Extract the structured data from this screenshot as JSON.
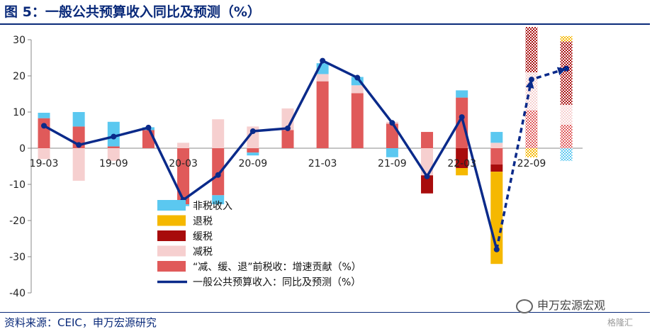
{
  "title": "图 5：一般公共预算收入同比及预测（%）",
  "source": "资料来源：CEIC，申万宏源研究",
  "watermark": "申万宏源宏观",
  "watermark_sub": "格隆汇",
  "colors": {
    "nontax": "#5bc8f0",
    "refund": "#f5b800",
    "defer": "#a80c0c",
    "cut": "#f6cfcf",
    "pretax": "#e05a5a",
    "line": "#0a2a8a",
    "title": "#0a2a7a"
  },
  "chart_data": {
    "type": "bar",
    "stacked": true,
    "ylim": [
      -40,
      30
    ],
    "yticks": [
      -40,
      -30,
      -20,
      -10,
      0,
      10,
      20,
      30
    ],
    "x_tick_labels": [
      "19-03",
      "19-09",
      "20-03",
      "20-09",
      "21-03",
      "21-09",
      "22-03",
      "22-09"
    ],
    "x_tick_index": [
      0,
      3,
      6,
      9,
      12,
      15,
      18,
      21
    ],
    "categories": [
      "19-03",
      "19-06",
      "19-09",
      "19-12",
      "20-03",
      "20-06",
      "20-09",
      "20-12",
      "21-03",
      "21-06",
      "21-09",
      "21-12",
      "22-03",
      "22-06",
      "22-09",
      "22-12"
    ],
    "x_positions": [
      0,
      1.5,
      3,
      4.5,
      6,
      7.5,
      9,
      10.5,
      12,
      13.5,
      15,
      16.5,
      18,
      19.5,
      21,
      22.5
    ],
    "forecast_from_index": 14,
    "series": [
      {
        "name": "“减、缓、退”前税收：增速贡献（%）",
        "key": "pretax",
        "values": [
          8.3,
          6.0,
          0.5,
          5.0,
          -15.5,
          -13.0,
          -1.2,
          5.0,
          18.5,
          15.2,
          6.8,
          4.5,
          14.0,
          -4.5,
          10.5,
          6.5
        ]
      },
      {
        "name": "减税",
        "key": "cut",
        "values": [
          -3.0,
          -9.0,
          -3.5,
          0.0,
          1.5,
          8.0,
          6.0,
          6.0,
          2.0,
          2.2,
          0.5,
          -7.5,
          0.0,
          1.5,
          10.5,
          5.5
        ]
      },
      {
        "name": "缓税",
        "key": "defer",
        "values": [
          0,
          0,
          0,
          0,
          0,
          0,
          0,
          0,
          0,
          0,
          0,
          -5.0,
          -5.5,
          -2.0,
          12.5,
          17.5
        ]
      },
      {
        "name": "退税",
        "key": "refund",
        "values": [
          0,
          0,
          0,
          0,
          0,
          0,
          0,
          0,
          0,
          0,
          0,
          0,
          -2.0,
          -25.5,
          -2.5,
          1.5
        ]
      },
      {
        "name": "非税收入",
        "key": "nontax",
        "values": [
          1.5,
          4.0,
          6.8,
          0.8,
          -0.5,
          -2.5,
          -0.8,
          0.0,
          3.0,
          2.3,
          -2.5,
          0.0,
          2.0,
          3.0,
          0.0,
          -3.5
        ]
      }
    ],
    "line": {
      "name": "一般公共预算收入：同比及预测（%）",
      "values": [
        6.2,
        0.9,
        3.2,
        5.7,
        -14.3,
        -7.4,
        4.7,
        5.5,
        24.2,
        19.5,
        7.0,
        -7.8,
        8.6,
        -28.0,
        19.0,
        22.0
      ]
    },
    "legend": [
      {
        "label": "非税收入",
        "key": "nontax",
        "kind": "box"
      },
      {
        "label": "退税",
        "key": "refund",
        "kind": "box"
      },
      {
        "label": "缓税",
        "key": "defer",
        "kind": "box"
      },
      {
        "label": "减税",
        "key": "cut",
        "kind": "box"
      },
      {
        "label": "“减、缓、退”前税收：增速贡献（%）",
        "key": "pretax",
        "kind": "box"
      },
      {
        "label": "一般公共预算收入：同比及预测（%）",
        "key": "line",
        "kind": "line"
      }
    ],
    "legend_position": "lower-left",
    "grid": false
  }
}
